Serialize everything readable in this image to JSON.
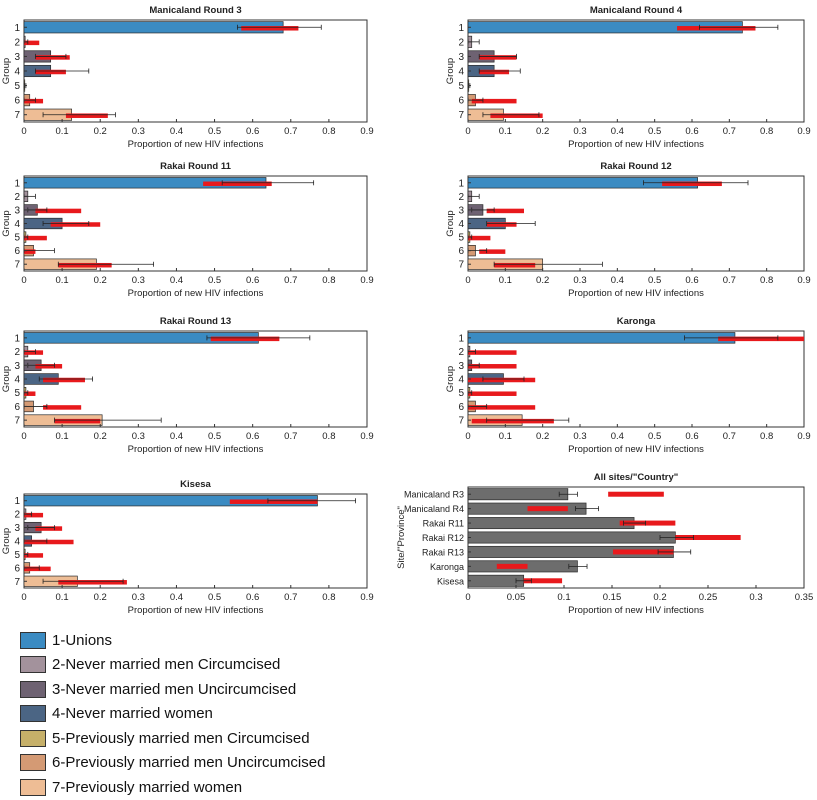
{
  "group_colors": [
    "#3b8bc2",
    "#a3929c",
    "#6e6272",
    "#4b6584",
    "#c6b069",
    "#d49a74",
    "#eebd95"
  ],
  "band_color": "#e8191c",
  "bar_gray": "#6d6d6d",
  "legend": [
    "1-Unions",
    "2-Never married men Circumcised",
    "3-Never married men Uncircumcised",
    "4-Never married women",
    "5-Previously married men Circumcised",
    "6-Previously married men Uncircumcised",
    "7-Previously married women"
  ],
  "chart_data": [
    {
      "type": "bar",
      "orientation": "horizontal",
      "title": "Manicaland Round 3",
      "xlabel": "Proportion of new HIV infections",
      "ylabel": "Group",
      "xlim": [
        0,
        0.9
      ],
      "xticks": [
        "0",
        "0.1",
        "0.2",
        "0.3",
        "0.4",
        "0.5",
        "0.6",
        "0.7",
        "0.8",
        "0.9"
      ],
      "categories": [
        "1",
        "2",
        "3",
        "4",
        "5",
        "6",
        "7"
      ],
      "values": [
        0.68,
        0.003,
        0.07,
        0.07,
        0.002,
        0.015,
        0.125
      ],
      "error_low": [
        0.56,
        0.0,
        0.03,
        0.03,
        0.0,
        0.0,
        0.05
      ],
      "error_high": [
        0.78,
        0.01,
        0.11,
        0.17,
        0.005,
        0.03,
        0.24
      ],
      "band_low": [
        0.57,
        0.0,
        0.03,
        0.03,
        0.0,
        0.0,
        0.11
      ],
      "band_high": [
        0.72,
        0.04,
        0.12,
        0.11,
        0.0,
        0.05,
        0.22
      ]
    },
    {
      "type": "bar",
      "orientation": "horizontal",
      "title": "Manicaland Round 4",
      "xlabel": "Proportion of new HIV infections",
      "ylabel": "Group",
      "xlim": [
        0,
        0.9
      ],
      "xticks": [
        "0",
        "0.1",
        "0.2",
        "0.3",
        "0.4",
        "0.5",
        "0.6",
        "0.7",
        "0.8",
        "0.9"
      ],
      "categories": [
        "1",
        "2",
        "3",
        "4",
        "5",
        "6",
        "7"
      ],
      "values": [
        0.735,
        0.01,
        0.07,
        0.07,
        0.002,
        0.02,
        0.095
      ],
      "error_low": [
        0.62,
        0.0,
        0.03,
        0.03,
        0.0,
        0.0,
        0.04
      ],
      "error_high": [
        0.83,
        0.03,
        0.13,
        0.14,
        0.005,
        0.04,
        0.19
      ],
      "band_low": [
        0.56,
        0.0,
        0.03,
        0.03,
        0.0,
        0.01,
        0.06
      ],
      "band_high": [
        0.77,
        0.0,
        0.13,
        0.11,
        0.0,
        0.13,
        0.2
      ]
    },
    {
      "type": "bar",
      "orientation": "horizontal",
      "title": "Rakai Round 11",
      "xlabel": "Proportion of new HIV infections",
      "ylabel": "Group",
      "xlim": [
        0,
        0.9
      ],
      "xticks": [
        "0",
        "0.1",
        "0.2",
        "0.3",
        "0.4",
        "0.5",
        "0.6",
        "0.7",
        "0.8",
        "0.9"
      ],
      "categories": [
        "1",
        "2",
        "3",
        "4",
        "5",
        "6",
        "7"
      ],
      "values": [
        0.635,
        0.01,
        0.035,
        0.1,
        0.005,
        0.025,
        0.19
      ],
      "error_low": [
        0.52,
        0.0,
        0.01,
        0.05,
        0.0,
        0.0,
        0.09
      ],
      "error_high": [
        0.76,
        0.03,
        0.06,
        0.17,
        0.01,
        0.08,
        0.34
      ],
      "band_low": [
        0.47,
        0.0,
        0.03,
        0.07,
        0.0,
        0.0,
        0.09
      ],
      "band_high": [
        0.65,
        0.0,
        0.15,
        0.2,
        0.06,
        0.03,
        0.23
      ]
    },
    {
      "type": "bar",
      "orientation": "horizontal",
      "title": "Rakai Round 12",
      "xlabel": "Proportion of new HIV infections",
      "ylabel": "Group",
      "xlim": [
        0,
        0.9
      ],
      "xticks": [
        "0",
        "0.1",
        "0.2",
        "0.3",
        "0.4",
        "0.5",
        "0.6",
        "0.7",
        "0.8",
        "0.9"
      ],
      "categories": [
        "1",
        "2",
        "3",
        "4",
        "5",
        "6",
        "7"
      ],
      "values": [
        0.615,
        0.01,
        0.04,
        0.1,
        0.005,
        0.02,
        0.2
      ],
      "error_low": [
        0.47,
        0.0,
        0.01,
        0.05,
        0.0,
        0.0,
        0.07
      ],
      "error_high": [
        0.75,
        0.03,
        0.07,
        0.18,
        0.01,
        0.05,
        0.36
      ],
      "band_low": [
        0.52,
        0.0,
        0.05,
        0.05,
        0.0,
        0.03,
        0.07
      ],
      "band_high": [
        0.68,
        0.0,
        0.15,
        0.13,
        0.06,
        0.1,
        0.18
      ]
    },
    {
      "type": "bar",
      "orientation": "horizontal",
      "title": "Rakai Round 13",
      "xlabel": "Proportion of new HIV infections",
      "ylabel": "Group",
      "xlim": [
        0,
        0.9
      ],
      "xticks": [
        "0",
        "0.1",
        "0.2",
        "0.3",
        "0.4",
        "0.5",
        "0.6",
        "0.7",
        "0.8",
        "0.9"
      ],
      "categories": [
        "1",
        "2",
        "3",
        "4",
        "5",
        "6",
        "7"
      ],
      "values": [
        0.615,
        0.01,
        0.045,
        0.09,
        0.005,
        0.025,
        0.205
      ],
      "error_low": [
        0.48,
        0.0,
        0.01,
        0.04,
        0.0,
        0.0,
        0.08
      ],
      "error_high": [
        0.75,
        0.03,
        0.08,
        0.18,
        0.01,
        0.06,
        0.36
      ],
      "band_low": [
        0.49,
        0.0,
        0.03,
        0.05,
        0.0,
        0.05,
        0.08
      ],
      "band_high": [
        0.67,
        0.05,
        0.1,
        0.16,
        0.03,
        0.15,
        0.2
      ]
    },
    {
      "type": "bar",
      "orientation": "horizontal",
      "title": "Karonga",
      "xlabel": "Proportion of new HIV infections",
      "ylabel": "Group",
      "xlim": [
        0,
        0.9
      ],
      "xticks": [
        "0",
        "0.1",
        "0.2",
        "0.3",
        "0.4",
        "0.5",
        "0.6",
        "0.7",
        "0.8",
        "0.9"
      ],
      "categories": [
        "1",
        "2",
        "3",
        "4",
        "5",
        "6",
        "7"
      ],
      "values": [
        0.715,
        0.005,
        0.01,
        0.095,
        0.005,
        0.02,
        0.145
      ],
      "error_low": [
        0.58,
        0.0,
        0.0,
        0.04,
        0.0,
        0.0,
        0.05
      ],
      "error_high": [
        0.83,
        0.02,
        0.03,
        0.15,
        0.01,
        0.05,
        0.27
      ],
      "band_low": [
        0.67,
        0.0,
        0.0,
        0.0,
        0.0,
        0.0,
        0.01
      ],
      "band_high": [
        0.9,
        0.13,
        0.13,
        0.18,
        0.13,
        0.18,
        0.23
      ]
    },
    {
      "type": "bar",
      "orientation": "horizontal",
      "title": "Kisesa",
      "xlabel": "Proportion of new HIV infections",
      "ylabel": "Group",
      "xlim": [
        0,
        0.9
      ],
      "xticks": [
        "0",
        "0.1",
        "0.2",
        "0.3",
        "0.4",
        "0.5",
        "0.6",
        "0.7",
        "0.8",
        "0.9"
      ],
      "categories": [
        "1",
        "2",
        "3",
        "4",
        "5",
        "6",
        "7"
      ],
      "values": [
        0.77,
        0.005,
        0.045,
        0.02,
        0.003,
        0.015,
        0.14
      ],
      "error_low": [
        0.64,
        0.0,
        0.01,
        0.0,
        0.0,
        0.0,
        0.05
      ],
      "error_high": [
        0.87,
        0.02,
        0.08,
        0.06,
        0.01,
        0.04,
        0.26
      ],
      "band_low": [
        0.54,
        0.0,
        0.03,
        0.0,
        0.0,
        0.0,
        0.09
      ],
      "band_high": [
        0.77,
        0.05,
        0.1,
        0.13,
        0.05,
        0.07,
        0.27
      ]
    },
    {
      "type": "bar",
      "orientation": "horizontal",
      "title": "All sites/\"Country\"",
      "xlabel": "Proportion of new HIV infections",
      "ylabel": "Site/\"Province\"",
      "xlim": [
        0,
        0.35
      ],
      "xticks": [
        "0",
        "0.05",
        "0.1",
        "0.15",
        "0.2",
        "0.25",
        "0.3",
        "0.35"
      ],
      "categories": [
        "Manicaland R3",
        "Manicaland R4",
        "Rakai R11",
        "Rakai R12",
        "Rakai R13",
        "Karonga",
        "Kisesa"
      ],
      "values": [
        0.104,
        0.123,
        0.173,
        0.216,
        0.214,
        0.114,
        0.058
      ],
      "error_low": [
        0.095,
        0.112,
        0.162,
        0.2,
        0.198,
        0.105,
        0.05
      ],
      "error_high": [
        0.114,
        0.136,
        0.185,
        0.235,
        0.232,
        0.124,
        0.066
      ],
      "band_low": [
        0.146,
        0.062,
        0.158,
        0.216,
        0.151,
        0.03,
        0.058
      ],
      "band_high": [
        0.204,
        0.104,
        0.216,
        0.284,
        0.214,
        0.062,
        0.098
      ]
    }
  ]
}
